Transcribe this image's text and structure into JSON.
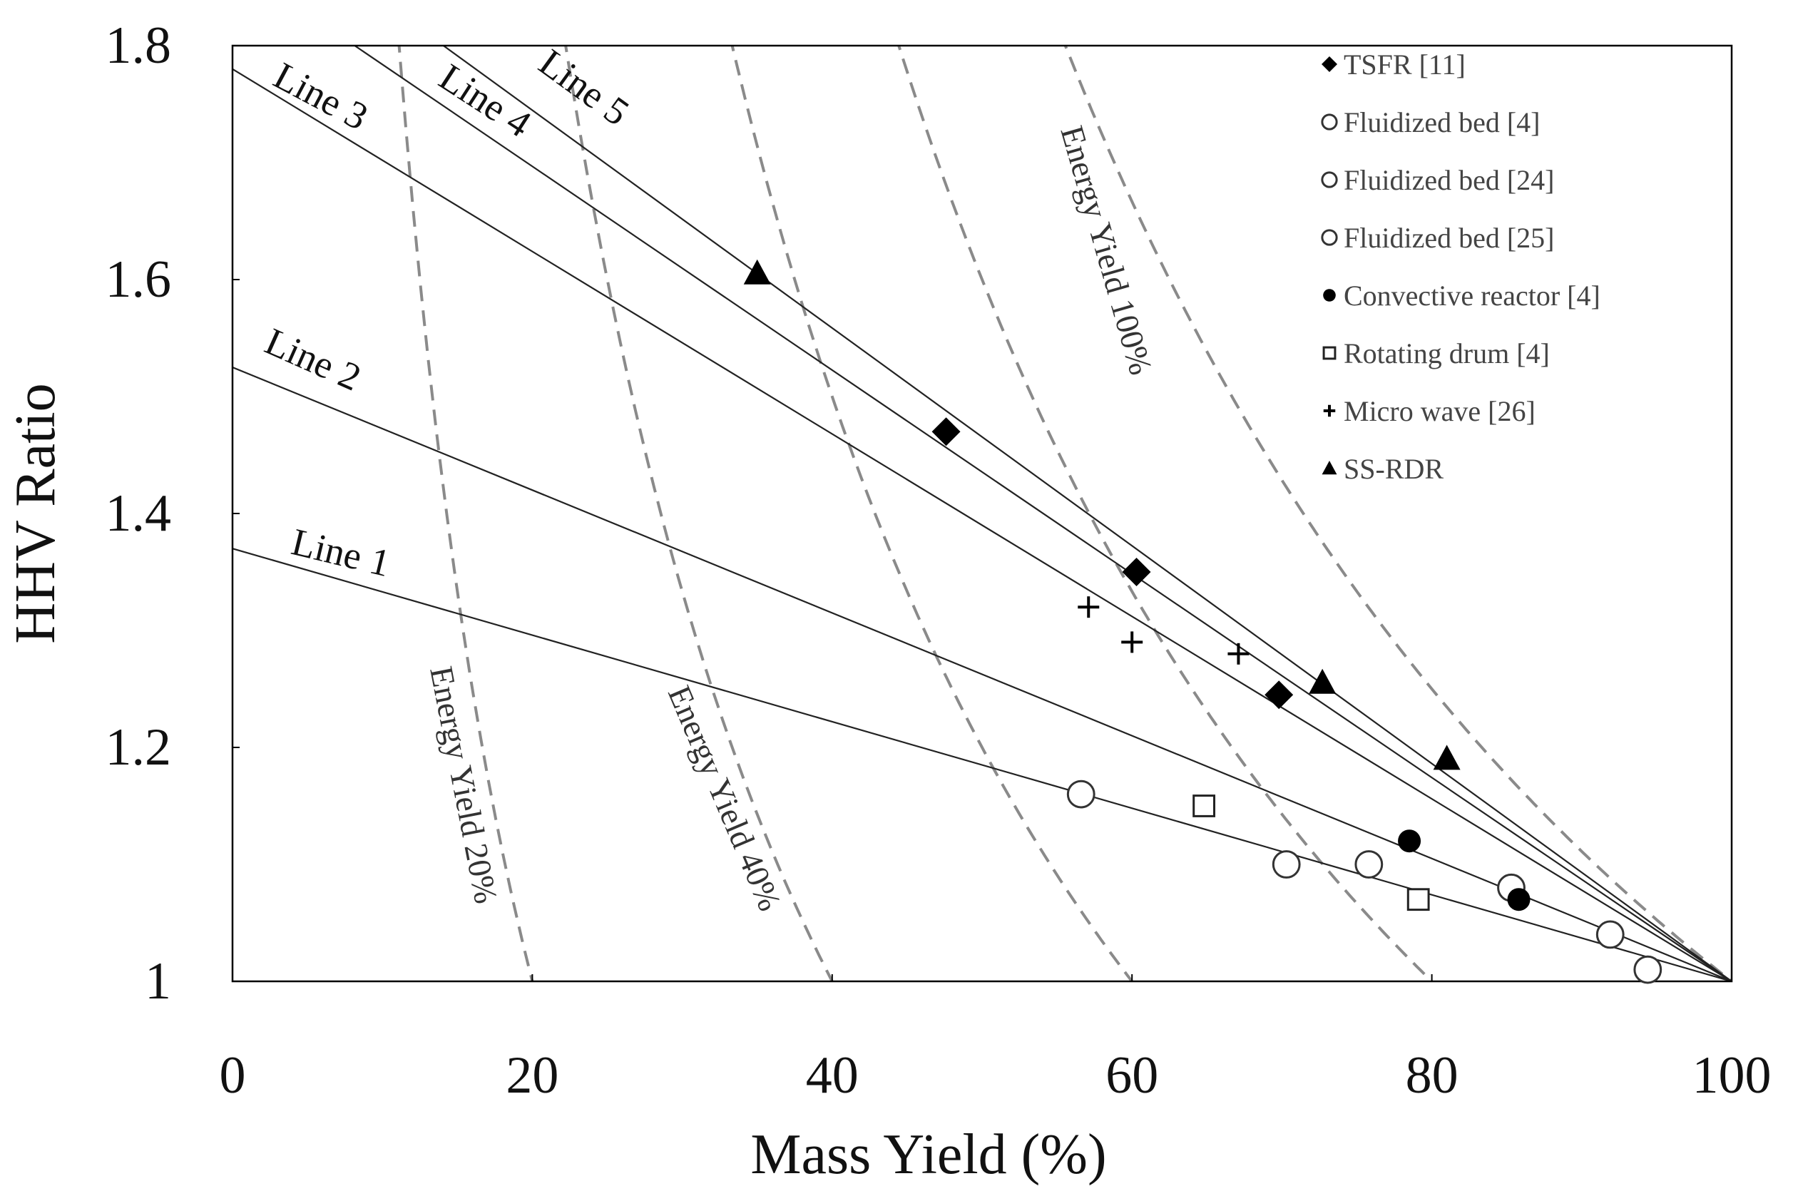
{
  "chart_data": {
    "type": "scatter",
    "xlabel": "Mass Yield (%)",
    "ylabel": "HHV Ratio",
    "xlim": [
      0,
      100
    ],
    "ylim": [
      1,
      1.8
    ],
    "x_ticks": [
      "0",
      "20",
      "40",
      "60",
      "80",
      "100"
    ],
    "y_ticks": [
      "1",
      "1.2",
      "1.4",
      "1.6",
      "1.8"
    ],
    "grid": false,
    "legend_position": "top-right",
    "reference_lines": [
      {
        "name": "Line 1",
        "intercept": 1.37,
        "through": [
          100,
          1.0
        ]
      },
      {
        "name": "Line 2",
        "intercept": 1.525,
        "through": [
          100,
          1.0
        ]
      },
      {
        "name": "Line 3",
        "intercept": 1.78,
        "through": [
          100,
          1.0
        ]
      },
      {
        "name": "Line 4",
        "intercept": 1.871,
        "through": [
          100,
          1.0
        ]
      },
      {
        "name": "Line 5",
        "intercept": 1.931,
        "through": [
          100,
          1.0
        ]
      }
    ],
    "energy_yield_curves": [
      {
        "label": "Energy Yield 20%",
        "energy_yield": 20
      },
      {
        "label": "Energy Yield 40%",
        "energy_yield": 40
      },
      {
        "label": "",
        "energy_yield": 60
      },
      {
        "label": "",
        "energy_yield": 80
      },
      {
        "label": "Energy Yield 100%",
        "energy_yield": 100
      }
    ],
    "series": [
      {
        "name": "TSFR [11]",
        "marker": "diamond",
        "points": [
          [
            47.6,
            1.47
          ],
          [
            60.3,
            1.35
          ],
          [
            69.8,
            1.245
          ]
        ]
      },
      {
        "name": "Fluidized bed [4]",
        "marker": "circle-open",
        "points": [
          [
            56.6,
            1.16
          ],
          [
            70.3,
            1.1
          ]
        ]
      },
      {
        "name": "Fluidized bed [24]",
        "marker": "circle-open",
        "points": [
          [
            75.8,
            1.1
          ],
          [
            85.3,
            1.08
          ]
        ]
      },
      {
        "name": "Fluidized bed [25]",
        "marker": "circle-open",
        "points": [
          [
            91.9,
            1.04
          ],
          [
            94.4,
            1.01
          ]
        ]
      },
      {
        "name": "Convective reactor [4]",
        "marker": "circle-filled",
        "points": [
          [
            78.5,
            1.12
          ],
          [
            85.8,
            1.07
          ]
        ]
      },
      {
        "name": "Rotating drum [4]",
        "marker": "square-open",
        "points": [
          [
            64.8,
            1.15
          ],
          [
            79.1,
            1.07
          ]
        ]
      },
      {
        "name": "Micro wave [26]",
        "marker": "plus",
        "points": [
          [
            57.1,
            1.32
          ],
          [
            60.0,
            1.29
          ],
          [
            67.1,
            1.28
          ]
        ]
      },
      {
        "name": "SS-RDR",
        "marker": "triangle",
        "points": [
          [
            35.0,
            1.605
          ],
          [
            72.7,
            1.255
          ],
          [
            81.0,
            1.19
          ]
        ]
      }
    ]
  }
}
